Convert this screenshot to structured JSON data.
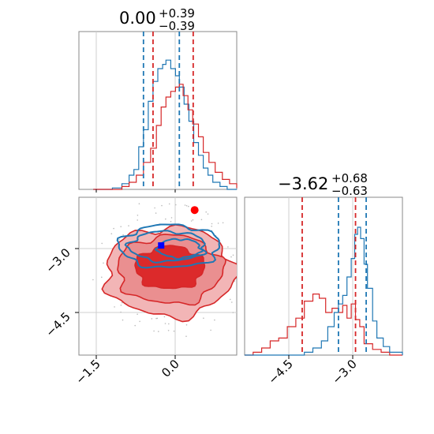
{
  "figure": {
    "param1_title": {
      "value": "0.00",
      "plus": "+0.39",
      "minus": "−0.39"
    },
    "param2_title": {
      "value": "−3.62",
      "plus": "+0.68",
      "minus": "−0.63"
    },
    "ticks": {
      "x_param1": [
        "−1.5",
        "0.0"
      ],
      "y_param2": [
        "−3.0",
        "−4.5"
      ],
      "x_param2": [
        "−4.5",
        "−3.0"
      ]
    }
  },
  "chart_data": {
    "type": "corner",
    "colors": {
      "blue": "#1f77b4",
      "red": "#d62728"
    },
    "param1": {
      "range": [
        -2.0,
        1.3
      ],
      "ticks": [
        -1.5,
        0.0
      ],
      "quantile_lines": {
        "blue": [
          -0.65,
          0.1
        ],
        "red": [
          -0.45,
          0.39
        ]
      }
    },
    "param2": {
      "range": [
        -5.6,
        -1.9
      ],
      "ticks": [
        -4.5,
        -3.0
      ],
      "quantile_lines": {
        "red": [
          -4.25,
          -3.0
        ],
        "blue": [
          -3.4,
          -2.75
        ]
      }
    },
    "hist_param1": {
      "blue": [
        [
          -1.7,
          0
        ],
        [
          -1.5,
          0
        ],
        [
          -1.3,
          0.01
        ],
        [
          -1.1,
          0.04
        ],
        [
          -0.95,
          0.1
        ],
        [
          -0.85,
          0.14
        ],
        [
          -0.75,
          0.3
        ],
        [
          -0.65,
          0.42
        ],
        [
          -0.55,
          0.62
        ],
        [
          -0.45,
          0.76
        ],
        [
          -0.35,
          0.85
        ],
        [
          -0.25,
          0.88
        ],
        [
          -0.18,
          0.91
        ],
        [
          -0.08,
          0.85
        ],
        [
          0.02,
          0.8
        ],
        [
          0.1,
          0.72
        ],
        [
          0.2,
          0.6
        ],
        [
          0.3,
          0.48
        ],
        [
          0.4,
          0.33
        ],
        [
          0.5,
          0.24
        ],
        [
          0.6,
          0.15
        ],
        [
          0.7,
          0.1
        ],
        [
          0.8,
          0.05
        ],
        [
          0.95,
          0.02
        ],
        [
          1.1,
          0
        ],
        [
          1.3,
          0
        ]
      ],
      "red": [
        [
          -1.7,
          0
        ],
        [
          -1.5,
          0
        ],
        [
          -1.3,
          0
        ],
        [
          -1.1,
          0.02
        ],
        [
          -0.95,
          0.05
        ],
        [
          -0.8,
          0.1
        ],
        [
          -0.65,
          0.19
        ],
        [
          -0.5,
          0.29
        ],
        [
          -0.38,
          0.45
        ],
        [
          -0.28,
          0.58
        ],
        [
          -0.18,
          0.65
        ],
        [
          -0.08,
          0.69
        ],
        [
          0.02,
          0.72
        ],
        [
          0.1,
          0.74
        ],
        [
          0.18,
          0.66
        ],
        [
          0.28,
          0.56
        ],
        [
          0.38,
          0.46
        ],
        [
          0.5,
          0.37
        ],
        [
          0.6,
          0.26
        ],
        [
          0.72,
          0.19
        ],
        [
          0.85,
          0.12
        ],
        [
          1.0,
          0.07
        ],
        [
          1.15,
          0.04
        ],
        [
          1.3,
          0.01
        ]
      ]
    },
    "hist_param2": {
      "red": [
        [
          -5.6,
          0
        ],
        [
          -5.4,
          0.02
        ],
        [
          -5.2,
          0.05
        ],
        [
          -5.0,
          0.1
        ],
        [
          -4.8,
          0.12
        ],
        [
          -4.6,
          0.2
        ],
        [
          -4.4,
          0.26
        ],
        [
          -4.2,
          0.38
        ],
        [
          -4.0,
          0.43
        ],
        [
          -3.85,
          0.4
        ],
        [
          -3.7,
          0.3
        ],
        [
          -3.55,
          0.33
        ],
        [
          -3.4,
          0.3
        ],
        [
          -3.3,
          0.35
        ],
        [
          -3.2,
          0.26
        ],
        [
          -3.1,
          0.36
        ],
        [
          -3.0,
          0.25
        ],
        [
          -2.9,
          0.2
        ],
        [
          -2.8,
          0.08
        ],
        [
          -2.6,
          0.04
        ],
        [
          -2.4,
          0.02
        ],
        [
          -2.2,
          0
        ],
        [
          -1.9,
          0
        ]
      ],
      "blue": [
        [
          -5.6,
          0
        ],
        [
          -4.4,
          0
        ],
        [
          -4.2,
          0.02
        ],
        [
          -4.0,
          0.05
        ],
        [
          -3.8,
          0.1
        ],
        [
          -3.65,
          0.2
        ],
        [
          -3.5,
          0.3
        ],
        [
          -3.4,
          0.36
        ],
        [
          -3.3,
          0.42
        ],
        [
          -3.2,
          0.55
        ],
        [
          -3.1,
          0.68
        ],
        [
          -3.02,
          0.85
        ],
        [
          -2.95,
          0.9
        ],
        [
          -2.88,
          0.82
        ],
        [
          -2.8,
          0.64
        ],
        [
          -2.72,
          0.47
        ],
        [
          -2.6,
          0.24
        ],
        [
          -2.5,
          0.12
        ],
        [
          -2.35,
          0.06
        ],
        [
          -2.2,
          0.02
        ],
        [
          -1.9,
          0
        ]
      ]
    },
    "contours_2d": {
      "red": {
        "levels": [
          {
            "center": [
              -0.1,
              -3.65
            ],
            "rx": 1.35,
            "ry": 1.05,
            "opacity": 0.5
          },
          {
            "center": [
              -0.1,
              -3.6
            ],
            "rx": 1.1,
            "ry": 0.8,
            "opacity": 0.6
          },
          {
            "center": [
              -0.1,
              -3.55
            ],
            "rx": 0.72,
            "ry": 0.5,
            "opacity": 0.85
          }
        ]
      },
      "blue": {
        "levels": [
          {
            "center": [
              -0.1,
              -3.05
            ],
            "rx": 1.05,
            "ry": 0.5
          },
          {
            "center": [
              -0.15,
              -3.05
            ],
            "rx": 0.8,
            "ry": 0.35
          },
          {
            "center": [
              0.1,
              -3.1
            ],
            "rx": 0.45,
            "ry": 0.22
          }
        ]
      }
    },
    "markers_2d": {
      "blue": [
        -0.28,
        -3.03
      ],
      "red": [
        0.42,
        -2.2
      ]
    }
  }
}
